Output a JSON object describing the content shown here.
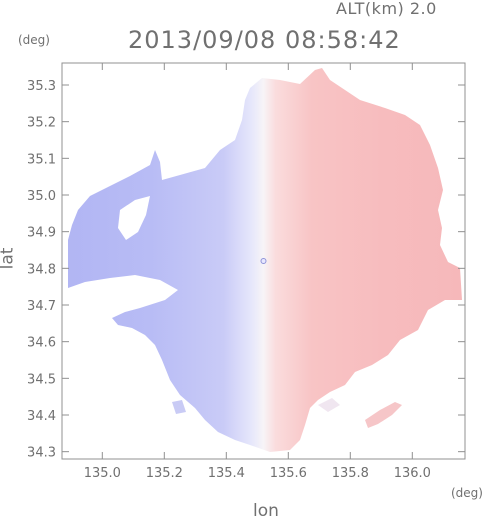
{
  "header": {
    "altitude_label": "ALT(km) 2.0",
    "timestamp": "2013/09/08 08:58:42"
  },
  "axes": {
    "y_unit": "(deg)",
    "x_unit": "(deg)",
    "xlabel": "lon",
    "ylabel": "lat"
  },
  "chart_data": {
    "type": "heatmap",
    "xlim": [
      134.87,
      136.17
    ],
    "ylim": [
      34.28,
      35.36
    ],
    "x_ticks": [
      "135.0",
      "135.2",
      "135.4",
      "135.6",
      "135.8",
      "136.0"
    ],
    "x_tick_values": [
      135.0,
      135.2,
      135.4,
      135.6,
      135.8,
      136.0
    ],
    "y_ticks": [
      "34.3",
      "34.4",
      "34.5",
      "34.6",
      "34.7",
      "34.8",
      "34.9",
      "35.0",
      "35.1",
      "35.2",
      "35.3"
    ],
    "y_tick_values": [
      34.3,
      34.4,
      34.5,
      34.6,
      34.7,
      34.8,
      34.9,
      35.0,
      35.1,
      35.2,
      35.3
    ],
    "radar_center": {
      "lon": 135.52,
      "lat": 34.82
    },
    "colors": {
      "negative": "#b4b8f4",
      "neutral": "#f6f6fc",
      "positive": "#f5b6b8",
      "axis": "#909090"
    },
    "grid": false
  }
}
